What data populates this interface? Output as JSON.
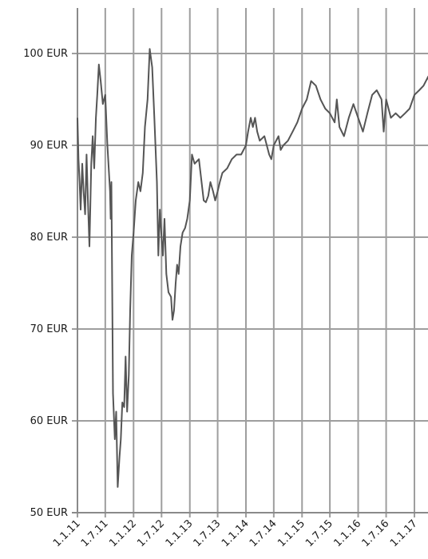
{
  "chart_data": {
    "type": "line",
    "title": "",
    "xlabel": "",
    "ylabel": "",
    "ylim": [
      50,
      102
    ],
    "xlim": [
      "2011-01-01",
      "2017-04-15"
    ],
    "grid": true,
    "y_ticks": [
      {
        "value": 50,
        "label": "50 EUR"
      },
      {
        "value": 60,
        "label": "60 EUR"
      },
      {
        "value": 70,
        "label": "70 EUR"
      },
      {
        "value": 80,
        "label": "80 EUR"
      },
      {
        "value": 90,
        "label": "90 EUR"
      },
      {
        "value": 100,
        "label": "100 EUR"
      }
    ],
    "x_ticks": [
      {
        "date": "2011-01-01",
        "label": "1.1.11"
      },
      {
        "date": "2011-07-01",
        "label": "1.7.11"
      },
      {
        "date": "2012-01-01",
        "label": "1.1.12"
      },
      {
        "date": "2012-07-01",
        "label": "1.7.12"
      },
      {
        "date": "2013-01-01",
        "label": "1.1.13"
      },
      {
        "date": "2013-07-01",
        "label": "1.7.13"
      },
      {
        "date": "2014-01-01",
        "label": "1.1.14"
      },
      {
        "date": "2014-07-01",
        "label": "1.7.14"
      },
      {
        "date": "2015-01-01",
        "label": "1.1.15"
      },
      {
        "date": "2015-07-01",
        "label": "1.7.15"
      },
      {
        "date": "2016-01-01",
        "label": "1.1.16"
      },
      {
        "date": "2016-07-01",
        "label": "1.7.16"
      },
      {
        "date": "2017-01-01",
        "label": "1.1.17"
      }
    ],
    "series": [
      {
        "color": "#555555",
        "x": [
          "2011-01-01",
          "2011-01-08",
          "2011-01-15",
          "2011-01-22",
          "2011-02-01",
          "2011-02-10",
          "2011-02-20",
          "2011-03-01",
          "2011-03-10",
          "2011-03-20",
          "2011-04-01",
          "2011-04-10",
          "2011-04-20",
          "2011-05-01",
          "2011-05-10",
          "2011-05-20",
          "2011-06-01",
          "2011-06-15",
          "2011-07-01",
          "2011-07-15",
          "2011-08-01",
          "2011-08-05",
          "2011-08-10",
          "2011-08-20",
          "2011-09-01",
          "2011-09-10",
          "2011-09-20",
          "2011-10-01",
          "2011-10-10",
          "2011-10-20",
          "2011-11-01",
          "2011-11-10",
          "2011-11-20",
          "2011-12-01",
          "2011-12-10",
          "2011-12-20",
          "2012-01-01",
          "2012-01-15",
          "2012-02-01",
          "2012-02-15",
          "2012-03-01",
          "2012-03-15",
          "2012-04-01",
          "2012-04-15",
          "2012-05-01",
          "2012-05-15",
          "2012-06-01",
          "2012-06-10",
          "2012-06-20",
          "2012-07-01",
          "2012-07-10",
          "2012-07-20",
          "2012-08-01",
          "2012-08-15",
          "2012-09-01",
          "2012-09-10",
          "2012-09-20",
          "2012-10-01",
          "2012-10-10",
          "2012-10-20",
          "2012-11-01",
          "2012-11-15",
          "2012-12-01",
          "2012-12-15",
          "2013-01-01",
          "2013-01-15",
          "2013-02-01",
          "2013-03-01",
          "2013-04-01",
          "2013-04-15",
          "2013-05-01",
          "2013-05-15",
          "2013-06-01",
          "2013-06-15",
          "2013-07-01",
          "2013-07-15",
          "2013-08-01",
          "2013-09-01",
          "2013-10-01",
          "2013-11-01",
          "2013-12-01",
          "2014-01-01",
          "2014-01-15",
          "2014-02-01",
          "2014-02-15",
          "2014-03-01",
          "2014-03-15",
          "2014-04-01",
          "2014-05-01",
          "2014-06-01",
          "2014-06-15",
          "2014-07-01",
          "2014-08-01",
          "2014-08-15",
          "2014-09-01",
          "2014-10-01",
          "2014-11-01",
          "2014-12-01",
          "2015-01-01",
          "2015-02-01",
          "2015-03-01",
          "2015-04-01",
          "2015-05-01",
          "2015-06-01",
          "2015-07-01",
          "2015-08-01",
          "2015-08-15",
          "2015-09-01",
          "2015-10-01",
          "2015-11-01",
          "2015-12-01",
          "2016-01-01",
          "2016-02-01",
          "2016-03-01",
          "2016-04-01",
          "2016-05-01",
          "2016-06-01",
          "2016-06-15",
          "2016-07-01",
          "2016-08-01",
          "2016-09-01",
          "2016-10-01",
          "2016-11-01",
          "2016-12-01",
          "2017-01-01",
          "2017-02-01",
          "2017-03-01",
          "2017-04-01",
          "2017-04-15"
        ],
        "y": [
          93.0,
          88.5,
          86.0,
          83.0,
          88.0,
          85.0,
          82.5,
          89.0,
          84.0,
          79.0,
          88.0,
          91.0,
          87.5,
          93.0,
          95.5,
          98.8,
          97.0,
          94.5,
          95.5,
          90.0,
          85.0,
          82.0,
          86.0,
          63.0,
          58.0,
          61.0,
          52.8,
          56.0,
          58.0,
          62.0,
          61.5,
          67.0,
          61.0,
          65.0,
          72.0,
          78.0,
          80.5,
          84.0,
          86.0,
          85.0,
          87.0,
          92.0,
          95.0,
          100.5,
          98.5,
          93.0,
          86.0,
          78.0,
          83.0,
          80.0,
          78.0,
          82.0,
          76.0,
          74.0,
          73.5,
          71.0,
          72.0,
          75.0,
          77.0,
          76.0,
          79.0,
          80.5,
          81.0,
          82.0,
          84.0,
          89.0,
          88.0,
          88.5,
          84.0,
          83.8,
          84.5,
          86.0,
          85.0,
          84.0,
          85.0,
          86.0,
          87.0,
          87.5,
          88.5,
          89.0,
          89.0,
          90.0,
          91.5,
          93.0,
          92.0,
          93.0,
          91.5,
          90.5,
          91.0,
          89.0,
          88.5,
          90.0,
          91.0,
          89.5,
          90.0,
          90.5,
          91.5,
          92.5,
          94.0,
          95.0,
          97.0,
          96.5,
          95.0,
          94.0,
          93.5,
          92.5,
          95.0,
          92.0,
          91.0,
          93.0,
          94.5,
          93.0,
          91.5,
          93.5,
          95.5,
          96.0,
          95.0,
          91.5,
          95.0,
          93.0,
          93.5,
          93.0,
          93.5,
          94.0,
          95.5,
          96.0,
          96.5,
          97.5,
          96.0
        ]
      }
    ]
  }
}
